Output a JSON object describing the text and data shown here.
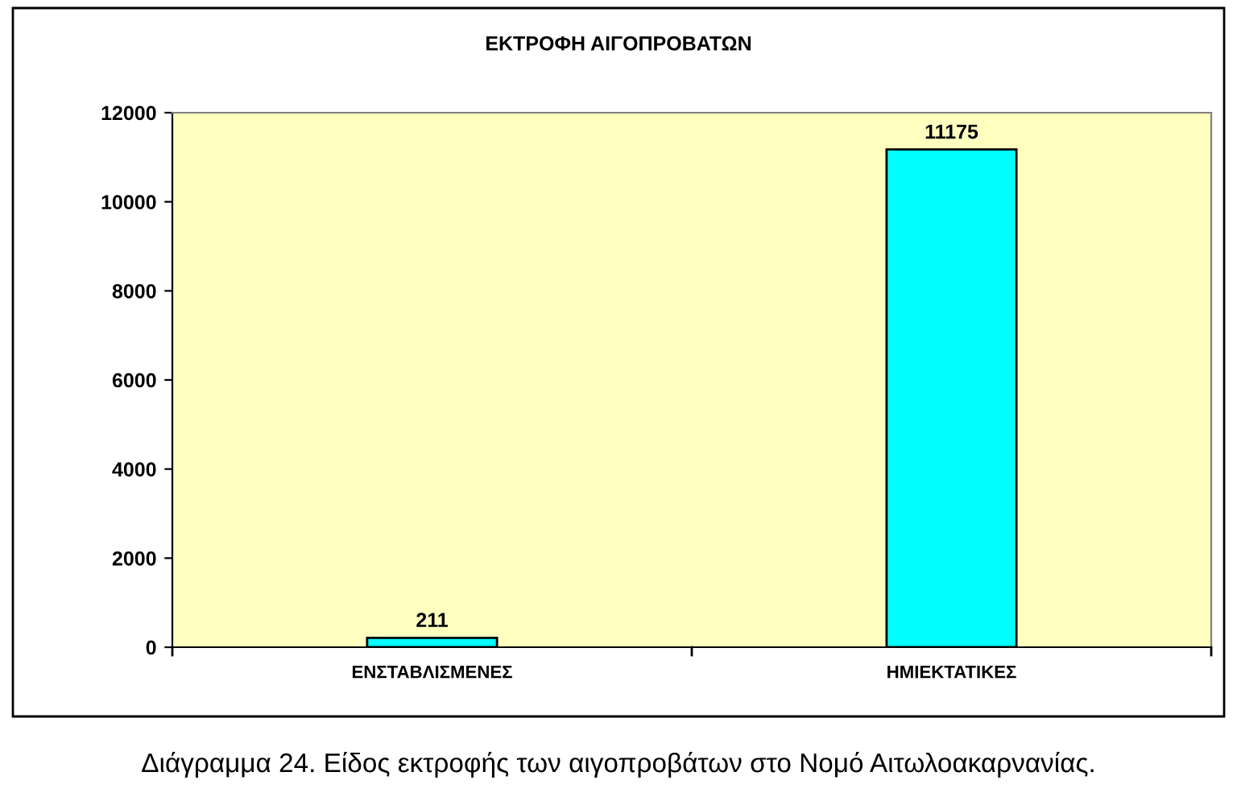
{
  "chart_data": {
    "type": "bar",
    "title": "ΕΚΤΡΟΦΗ ΑΙΓΟΠΡΟΒΑΤΩΝ",
    "categories": [
      "ΕΝΣΤΑΒΛΙΣΜΕΝΕΣ",
      "ΗΜΙΕΚΤΑΤΙΚΕΣ"
    ],
    "values": [
      211,
      11175
    ],
    "color": "#00ffff",
    "ylim": [
      0,
      12000
    ],
    "yticks": [
      0,
      2000,
      4000,
      6000,
      8000,
      10000,
      12000
    ],
    "grid": false,
    "data_labels": true,
    "annotations": [
      "Διάγραμμα 24. Είδος εκτροφής των αιγοπροβάτων στο Νομό Αιτωλοακαρνανίας."
    ]
  }
}
